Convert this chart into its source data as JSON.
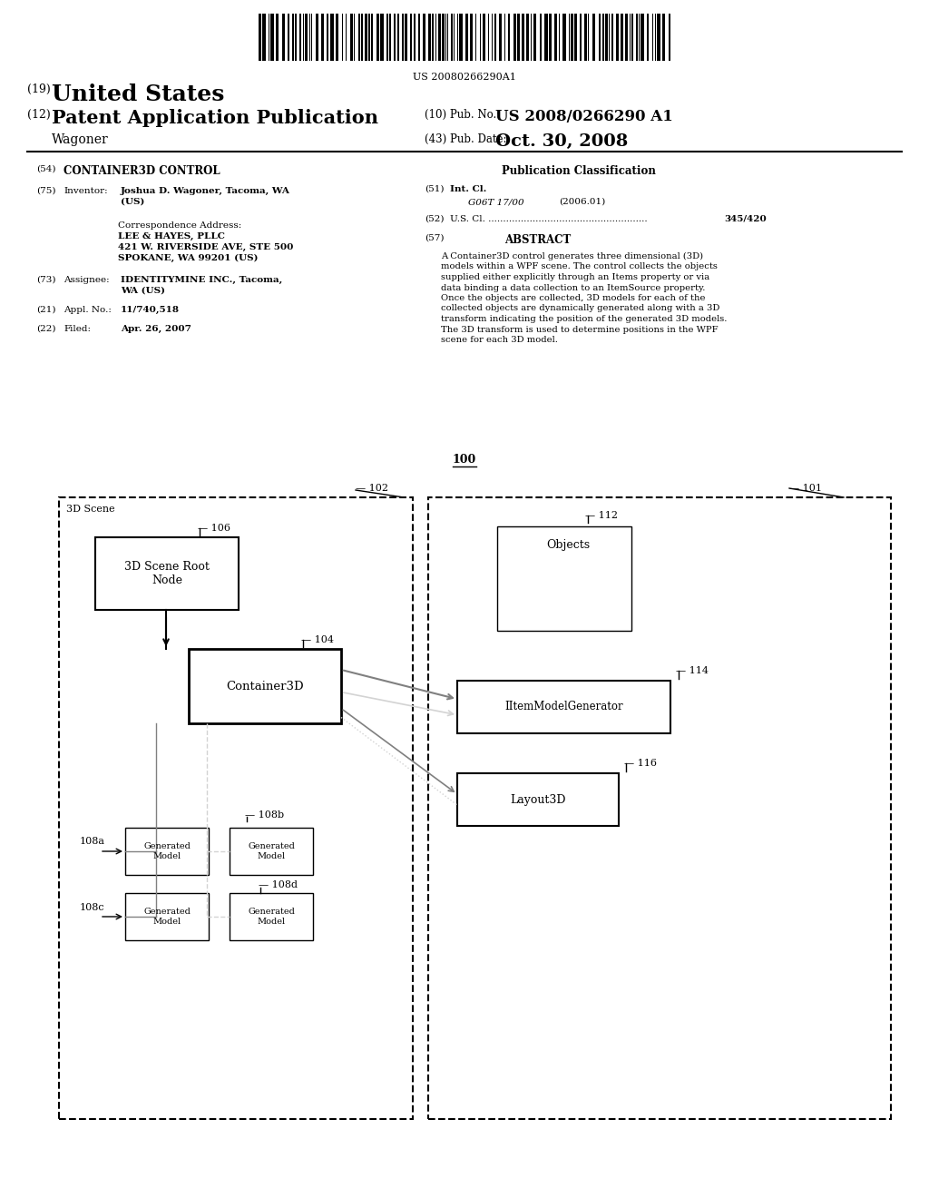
{
  "background_color": "#ffffff",
  "barcode_text": "US 20080266290A1",
  "header_line1_num": "(19)",
  "header_line1_text": "United States",
  "header_line2_num": "(12)",
  "header_line2_text": "Patent Application Publication",
  "header_pub_num_label": "(10) Pub. No.:",
  "header_pub_num_val": "US 2008/0266290 A1",
  "header_wagoner": "Wagoner",
  "header_date_label": "(43) Pub. Date:",
  "header_date_val": "Oct. 30, 2008",
  "title_num": "(54)",
  "title_text": "CONTAINER3D CONTROL",
  "pub_class_header": "Publication Classification",
  "inventor_num": "(75)",
  "inventor_label": "Inventor:",
  "inventor_val1": "Joshua D. Wagoner, Tacoma, WA",
  "inventor_val2": "(US)",
  "corr_label": "Correspondence Address:",
  "corr_line1": "LEE & HAYES, PLLC",
  "corr_line2": "421 W. RIVERSIDE AVE, STE 500",
  "corr_line3": "SPOKANE, WA 99201 (US)",
  "assignee_num": "(73)",
  "assignee_label": "Assignee:",
  "assignee_val1": "IDENTITYMINE INC., Tacoma,",
  "assignee_val2": "WA (US)",
  "appl_num": "(21)",
  "appl_label": "Appl. No.:",
  "appl_val": "11/740,518",
  "filed_num": "(22)",
  "filed_label": "Filed:",
  "filed_val": "Apr. 26, 2007",
  "int_cl_num": "(51)",
  "int_cl_label": "Int. Cl.",
  "int_cl_code": "G06T 17/00",
  "int_cl_year": "(2006.01)",
  "us_cl_num": "(52)",
  "us_cl_label": "U.S. Cl.",
  "us_cl_dots": "......................................................",
  "us_cl_val": "345/420",
  "abstract_num": "(57)",
  "abstract_header": "ABSTRACT",
  "abstract_lines": [
    "A Container3D control generates three dimensional (3D)",
    "models within a WPF scene. The control collects the objects",
    "supplied either explicitly through an Items property or via",
    "data binding a data collection to an ItemSource property.",
    "Once the objects are collected, 3D models for each of the",
    "collected objects are dynamically generated along with a 3D",
    "transform indicating the position of the generated 3D models.",
    "The 3D transform is used to determine positions in the WPF",
    "scene for each 3D model."
  ],
  "diagram_label": "100",
  "left_box_label": "102",
  "right_box_label": "101",
  "scene_label": "3D Scene",
  "root_node_label": "106",
  "root_node_text": "3D Scene Root\nNode",
  "container3d_label": "104",
  "container3d_text": "Container3D",
  "objects_label": "112",
  "objects_text": "Objects",
  "iitem_label": "114",
  "iitem_text": "IItemModelGenerator",
  "layout_label": "116",
  "layout_text": "Layout3D",
  "gm_108a_label": "108a",
  "gm_108b_label": "108b",
  "gm_108c_label": "108c",
  "gm_108d_label": "108d",
  "gm_text": "Generated\nModel"
}
